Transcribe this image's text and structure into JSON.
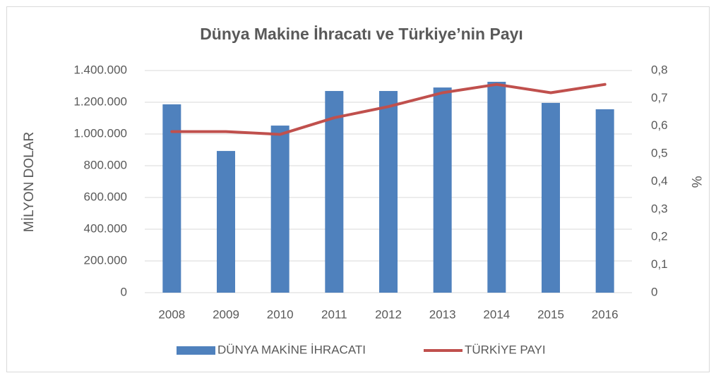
{
  "chart_data": {
    "type": "combo",
    "title": "Dünya Makine İhracatı ve Türkiye’nin Payı",
    "y_label": "MİLYON DOLAR",
    "y2_label": "%",
    "categories": [
      "2008",
      "2009",
      "2010",
      "2011",
      "2012",
      "2013",
      "2014",
      "2015",
      "2016"
    ],
    "series": [
      {
        "name": "DÜNYA MAKİNE İHRACATI",
        "type": "bar",
        "color": "#4f81bd",
        "axis": "y",
        "values": [
          1187000,
          893000,
          1053000,
          1271000,
          1271000,
          1293000,
          1329000,
          1196000,
          1156000
        ]
      },
      {
        "name": "TÜRKİYE PAYI",
        "type": "line",
        "color": "#c0504d",
        "axis": "y2",
        "values": [
          0.58,
          0.58,
          0.57,
          0.63,
          0.67,
          0.72,
          0.75,
          0.72,
          0.75
        ]
      }
    ],
    "ylim": [
      0,
      1400000
    ],
    "yticks": [
      0,
      {
        "value": 200000,
        "label": "200.000"
      },
      {
        "value": 400000,
        "label": "400.000"
      },
      {
        "value": 600000,
        "label": "600.000"
      },
      {
        "value": 800000,
        "label": "800.000"
      },
      {
        "value": 1000000,
        "label": "1.000.000"
      },
      {
        "value": 1200000,
        "label": "1.200.000"
      },
      {
        "value": 1400000,
        "label": "1.400.000"
      }
    ],
    "y2lim": [
      0,
      0.8
    ],
    "y2ticks": [
      0,
      {
        "value": 0.1,
        "label": "0,1"
      },
      {
        "value": 0.2,
        "label": "0,2"
      },
      {
        "value": 0.3,
        "label": "0,3"
      },
      {
        "value": 0.4,
        "label": "0,4"
      },
      {
        "value": 0.5,
        "label": "0,5"
      },
      {
        "value": 0.6,
        "label": "0,6"
      },
      {
        "value": 0.7,
        "label": "0,7"
      },
      {
        "value": 0.8,
        "label": "0,8"
      }
    ],
    "grid": true,
    "legend": "bottom"
  }
}
